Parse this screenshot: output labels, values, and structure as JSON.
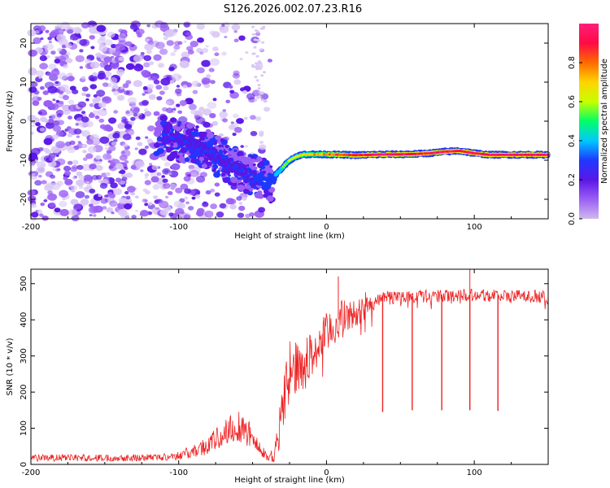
{
  "title": "S126.2026.002.07.23.R16",
  "chart_data": [
    {
      "type": "heatmap",
      "name": "spectrogram",
      "xlabel": "Height of straight line (km)",
      "ylabel": "Frequency (Hz)",
      "xlim": [
        -200,
        150
      ],
      "ylim": [
        -25,
        25
      ],
      "xticks": [
        -200,
        -100,
        0,
        100
      ],
      "yticks": [
        -20,
        -10,
        0,
        10,
        20
      ],
      "colorbar": {
        "label": "Normalized spectral amplitude",
        "range": [
          0,
          1
        ],
        "ticks": [
          "0.0",
          "0.2",
          "0.4",
          "0.6",
          "0.8"
        ],
        "tick_values": [
          0.0,
          0.2,
          0.4,
          0.6,
          0.8
        ],
        "colormap": [
          "#cfb8ee",
          "#9b5ff5",
          "#5a17e6",
          "#1f38ff",
          "#00c8ff",
          "#00ff66",
          "#c6ff00",
          "#ffd400",
          "#ff6a00",
          "#ff0a45",
          "#ff1f7a"
        ]
      },
      "noise_region": {
        "x_range": [
          -200,
          -40
        ],
        "y_range": [
          -25,
          25
        ],
        "color": "#9b5ff5"
      },
      "carrier_track": {
        "x": [
          -110,
          -100,
          -90,
          -80,
          -70,
          -60,
          -50,
          -42,
          -38,
          -35,
          -30,
          -25,
          -20,
          -15,
          -10,
          -5,
          0,
          10,
          20,
          30,
          40,
          50,
          60,
          70,
          80,
          90,
          100,
          110,
          120,
          130,
          140,
          150
        ],
        "y": [
          -4,
          -5,
          -6,
          -7.5,
          -10,
          -12,
          -14,
          -15,
          -16,
          -14,
          -12,
          -10,
          -9,
          -8.5,
          -8.5,
          -8.5,
          -8.5,
          -8.6,
          -8.7,
          -8.6,
          -8.5,
          -8.5,
          -8.4,
          -8.2,
          -7.8,
          -7.6,
          -8.2,
          -8.6,
          -8.6,
          -8.6,
          -8.6,
          -8.6
        ],
        "amplitude": [
          0.3,
          0.3,
          0.32,
          0.32,
          0.33,
          0.34,
          0.36,
          0.4,
          0.45,
          0.45,
          0.55,
          0.6,
          0.65,
          0.7,
          0.72,
          0.75,
          0.8,
          0.85,
          0.9,
          0.95,
          0.98,
          0.95,
          0.92,
          0.95,
          0.98,
          0.95,
          0.98,
          0.98,
          0.98,
          0.98,
          0.98,
          0.98
        ]
      }
    },
    {
      "type": "line",
      "name": "snr",
      "xlabel": "Height of straight line (km)",
      "ylabel": "SNR (10 * v/v)",
      "xlim": [
        -200,
        150
      ],
      "ylim": [
        0,
        540
      ],
      "xticks": [
        -200,
        -100,
        0,
        100
      ],
      "yticks": [
        0,
        100,
        200,
        300,
        400,
        500
      ],
      "color": "#ee2222",
      "series_envelope": {
        "x": [
          -200,
          -150,
          -110,
          -100,
          -90,
          -80,
          -70,
          -65,
          -60,
          -55,
          -50,
          -45,
          -40,
          -35,
          -32,
          -28,
          -25,
          -20,
          -15,
          -10,
          -5,
          0,
          5,
          10,
          15,
          20,
          25,
          30,
          35,
          40,
          50,
          60,
          70,
          80,
          90,
          100,
          110,
          120,
          130,
          140,
          150
        ],
        "y": [
          18,
          18,
          20,
          25,
          35,
          55,
          80,
          100,
          110,
          100,
          70,
          40,
          20,
          30,
          90,
          200,
          250,
          270,
          280,
          300,
          330,
          360,
          380,
          400,
          410,
          420,
          430,
          440,
          450,
          460,
          465,
          465,
          465,
          465,
          470,
          470,
          470,
          465,
          465,
          465,
          465
        ],
        "noise": [
          10,
          10,
          10,
          12,
          18,
          28,
          38,
          45,
          50,
          45,
          35,
          20,
          12,
          25,
          60,
          70,
          75,
          75,
          70,
          70,
          60,
          60,
          55,
          55,
          45,
          40,
          35,
          30,
          25,
          20,
          18,
          18,
          18,
          18,
          18,
          18,
          18,
          18,
          18,
          18,
          18
        ]
      },
      "dips": [
        {
          "x": 38,
          "y": 145
        },
        {
          "x": 58,
          "y": 150
        },
        {
          "x": 78,
          "y": 150
        },
        {
          "x": 97,
          "y": 150
        },
        {
          "x": 116,
          "y": 148
        }
      ]
    }
  ]
}
